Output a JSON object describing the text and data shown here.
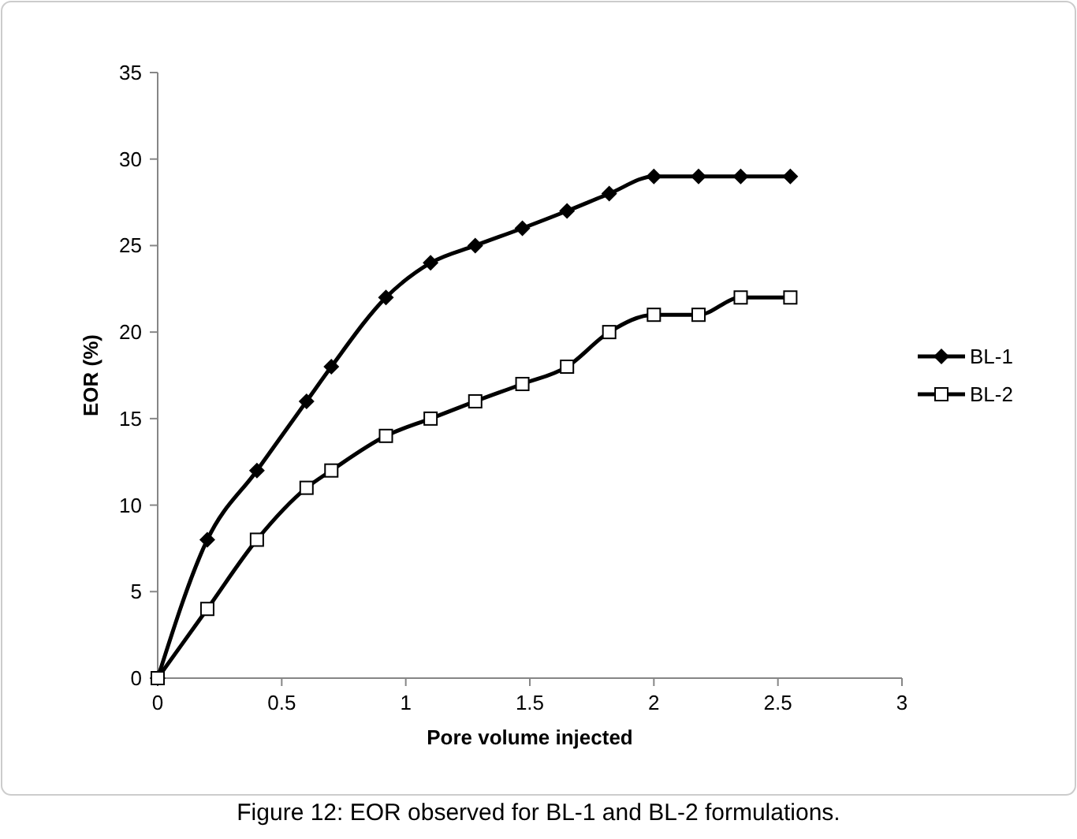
{
  "chart_data": {
    "type": "line",
    "xlabel": "Pore volume injected",
    "ylabel": "EOR (%)",
    "xlim": [
      0,
      3
    ],
    "xticks": [
      0,
      0.5,
      1,
      1.5,
      2,
      2.5,
      3
    ],
    "ylim": [
      0,
      35
    ],
    "yticks": [
      0,
      5,
      10,
      15,
      20,
      25,
      30,
      35
    ],
    "grid": false,
    "legend": "right",
    "line_style": "solid",
    "series": [
      {
        "name": "BL-1",
        "color": "#000000",
        "marker": "diamond",
        "x": [
          0,
          0.2,
          0.4,
          0.6,
          0.7,
          0.92,
          1.1,
          1.28,
          1.47,
          1.65,
          1.82,
          2.0,
          2.18,
          2.35,
          2.55
        ],
        "values": [
          0,
          8,
          12,
          16,
          18,
          22,
          24,
          25,
          26,
          27,
          28,
          29,
          29,
          29,
          29
        ]
      },
      {
        "name": "BL-2",
        "color": "#000000",
        "marker": "square",
        "x": [
          0,
          0.2,
          0.4,
          0.6,
          0.7,
          0.92,
          1.1,
          1.28,
          1.47,
          1.65,
          1.82,
          2.0,
          2.18,
          2.35,
          2.55
        ],
        "values": [
          0,
          4,
          8,
          11,
          12,
          14,
          15,
          16,
          17,
          18,
          20,
          21,
          21,
          22,
          22
        ]
      }
    ],
    "annotations": [
      "Figure 12: EOR observed for BL-1 and BL-2 formulations."
    ]
  }
}
